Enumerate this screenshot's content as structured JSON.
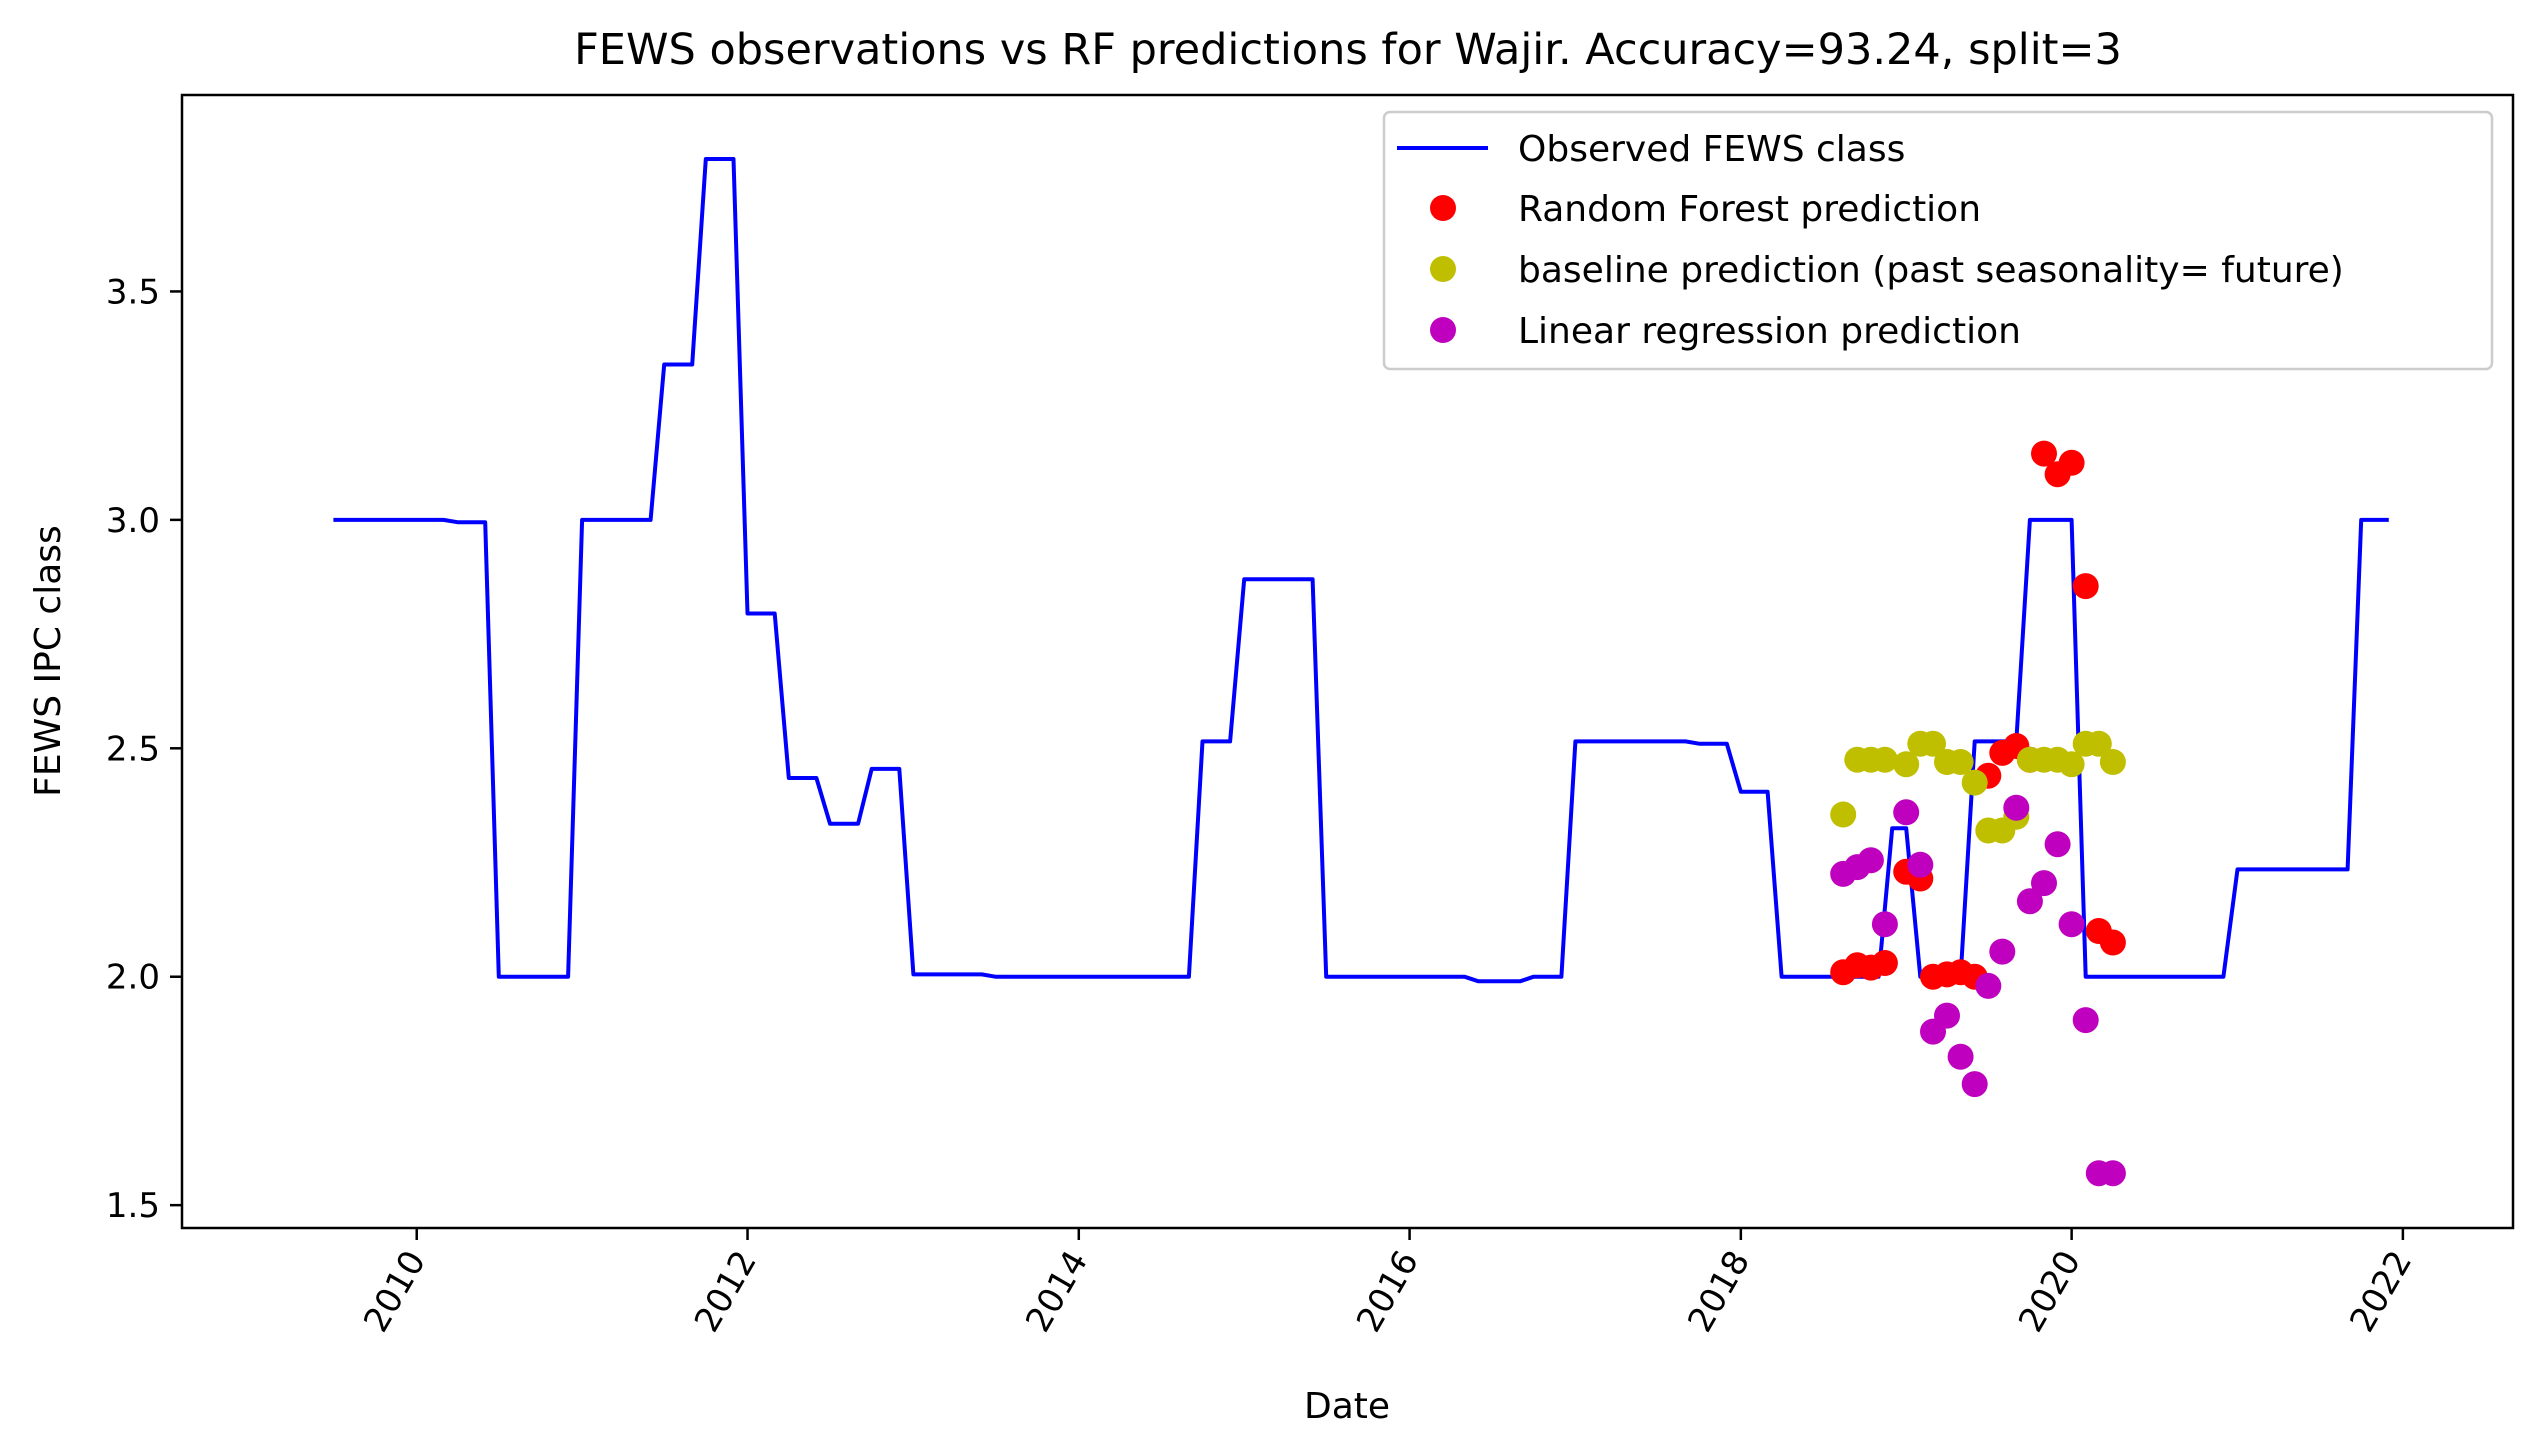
{
  "chart_data": {
    "type": "line",
    "title": "FEWS observations vs RF predictions for Wajir. Accuracy=93.24, split=3",
    "xlabel": "Date",
    "ylabel": "FEWS IPC class",
    "xlim": [
      "2008-08-01",
      "2022-09-01"
    ],
    "ylim": [
      1.45,
      3.93
    ],
    "x_ticks": [
      "2010",
      "2012",
      "2014",
      "2016",
      "2018",
      "2020",
      "2022"
    ],
    "y_ticks": [
      "1.5",
      "2.0",
      "2.5",
      "3.0",
      "3.5"
    ],
    "grid": false,
    "legend_position": "top-right",
    "series": [
      {
        "name": "Observed FEWS class",
        "kind": "line",
        "color": "#0000ff",
        "points": [
          [
            "2009-07-01",
            3.0
          ],
          [
            "2010-03-01",
            3.0
          ],
          [
            "2010-04-01",
            2.995
          ],
          [
            "2010-06-01",
            2.995
          ],
          [
            "2010-07-01",
            2.0
          ],
          [
            "2010-12-01",
            2.0
          ],
          [
            "2011-01-01",
            3.0
          ],
          [
            "2011-06-01",
            3.0
          ],
          [
            "2011-07-01",
            3.34
          ],
          [
            "2011-09-01",
            3.34
          ],
          [
            "2011-10-01",
            3.79
          ],
          [
            "2011-12-01",
            3.79
          ],
          [
            "2012-01-01",
            2.795
          ],
          [
            "2012-03-01",
            2.795
          ],
          [
            "2012-04-01",
            2.435
          ],
          [
            "2012-06-01",
            2.435
          ],
          [
            "2012-07-01",
            2.335
          ],
          [
            "2012-09-01",
            2.335
          ],
          [
            "2012-10-01",
            2.455
          ],
          [
            "2012-12-01",
            2.455
          ],
          [
            "2013-01-01",
            2.005
          ],
          [
            "2013-06-01",
            2.005
          ],
          [
            "2013-07-01",
            2.0
          ],
          [
            "2014-09-01",
            2.0
          ],
          [
            "2014-10-01",
            2.515
          ],
          [
            "2014-12-01",
            2.515
          ],
          [
            "2015-01-01",
            2.87
          ],
          [
            "2015-06-01",
            2.87
          ],
          [
            "2015-07-01",
            2.0
          ],
          [
            "2016-05-01",
            2.0
          ],
          [
            "2016-06-01",
            1.99
          ],
          [
            "2016-09-01",
            1.99
          ],
          [
            "2016-10-01",
            2.0
          ],
          [
            "2016-12-01",
            2.0
          ],
          [
            "2017-01-01",
            2.515
          ],
          [
            "2017-09-01",
            2.515
          ],
          [
            "2017-10-01",
            2.51
          ],
          [
            "2017-12-01",
            2.51
          ],
          [
            "2018-01-01",
            2.405
          ],
          [
            "2018-03-01",
            2.405
          ],
          [
            "2018-04-01",
            2.0
          ],
          [
            "2018-11-01",
            2.0
          ],
          [
            "2018-12-01",
            2.325
          ],
          [
            "2019-01-01",
            2.325
          ],
          [
            "2019-02-01",
            2.0
          ],
          [
            "2019-05-01",
            2.0
          ],
          [
            "2019-06-01",
            2.515
          ],
          [
            "2019-09-01",
            2.515
          ],
          [
            "2019-10-01",
            3.0
          ],
          [
            "2020-01-01",
            3.0
          ],
          [
            "2020-02-01",
            2.0
          ],
          [
            "2020-12-01",
            2.0
          ],
          [
            "2021-01-01",
            2.235
          ],
          [
            "2021-09-01",
            2.235
          ],
          [
            "2021-10-01",
            3.0
          ],
          [
            "2021-12-01",
            3.0
          ]
        ]
      },
      {
        "name": "Random Forest prediction",
        "kind": "scatter",
        "color": "#ff0000",
        "points": [
          [
            "2018-08-15",
            2.01
          ],
          [
            "2018-09-15",
            2.025
          ],
          [
            "2018-10-15",
            2.02
          ],
          [
            "2018-11-15",
            2.03
          ],
          [
            "2019-01-01",
            2.23
          ],
          [
            "2019-02-01",
            2.215
          ],
          [
            "2019-03-01",
            2.0
          ],
          [
            "2019-04-01",
            2.005
          ],
          [
            "2019-05-01",
            2.01
          ],
          [
            "2019-06-01",
            2.0
          ],
          [
            "2019-07-01",
            2.44
          ],
          [
            "2019-08-01",
            2.49
          ],
          [
            "2019-09-01",
            2.505
          ],
          [
            "2019-10-01",
            2.475
          ],
          [
            "2019-11-01",
            3.145
          ],
          [
            "2019-12-01",
            3.1
          ],
          [
            "2020-01-01",
            3.125
          ],
          [
            "2020-02-01",
            2.855
          ],
          [
            "2020-03-01",
            2.1
          ],
          [
            "2020-04-01",
            2.075
          ]
        ]
      },
      {
        "name": "baseline prediction (past seasonality= future)",
        "kind": "scatter",
        "color": "#bfbf00",
        "points": [
          [
            "2018-08-15",
            2.355
          ],
          [
            "2018-09-15",
            2.475
          ],
          [
            "2018-10-15",
            2.475
          ],
          [
            "2018-11-15",
            2.475
          ],
          [
            "2019-01-01",
            2.465
          ],
          [
            "2019-02-01",
            2.51
          ],
          [
            "2019-03-01",
            2.51
          ],
          [
            "2019-04-01",
            2.47
          ],
          [
            "2019-05-01",
            2.47
          ],
          [
            "2019-06-01",
            2.425
          ],
          [
            "2019-07-01",
            2.32
          ],
          [
            "2019-08-01",
            2.32
          ],
          [
            "2019-09-01",
            2.35
          ],
          [
            "2019-10-01",
            2.475
          ],
          [
            "2019-11-01",
            2.475
          ],
          [
            "2019-12-01",
            2.475
          ],
          [
            "2020-01-01",
            2.465
          ],
          [
            "2020-02-01",
            2.51
          ],
          [
            "2020-03-01",
            2.51
          ],
          [
            "2020-04-01",
            2.47
          ]
        ]
      },
      {
        "name": "Linear regression prediction",
        "kind": "scatter",
        "color": "#bf00bf",
        "points": [
          [
            "2018-08-15",
            2.225
          ],
          [
            "2018-09-15",
            2.24
          ],
          [
            "2018-10-15",
            2.255
          ],
          [
            "2018-11-15",
            2.115
          ],
          [
            "2019-01-01",
            2.36
          ],
          [
            "2019-02-01",
            2.245
          ],
          [
            "2019-03-01",
            1.88
          ],
          [
            "2019-04-01",
            1.915
          ],
          [
            "2019-05-01",
            1.825
          ],
          [
            "2019-06-01",
            1.765
          ],
          [
            "2019-07-01",
            1.98
          ],
          [
            "2019-08-01",
            2.055
          ],
          [
            "2019-09-01",
            2.37
          ],
          [
            "2019-10-01",
            2.165
          ],
          [
            "2019-11-01",
            2.205
          ],
          [
            "2019-12-01",
            2.29
          ],
          [
            "2020-01-01",
            2.115
          ],
          [
            "2020-02-01",
            1.905
          ],
          [
            "2020-03-01",
            1.57
          ],
          [
            "2020-04-01",
            1.57
          ]
        ]
      }
    ]
  }
}
